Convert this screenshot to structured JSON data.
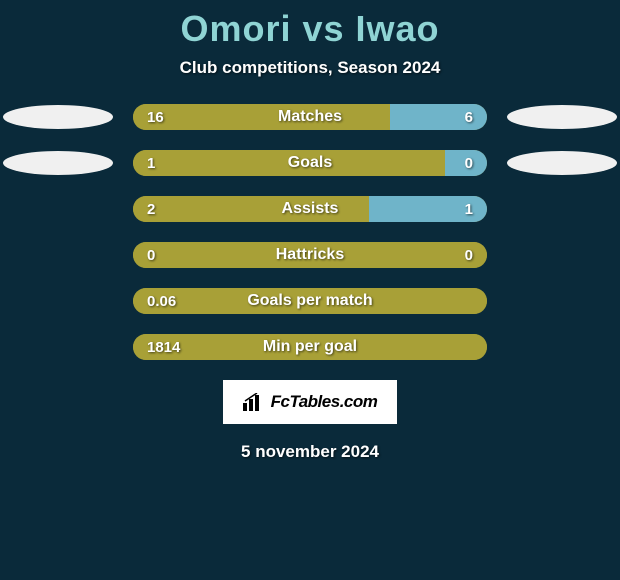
{
  "background_color": "#0a2a3a",
  "title": {
    "text": "Omori vs Iwao",
    "color": "#8fd4d4",
    "fontsize": 36
  },
  "subtitle": {
    "text": "Club competitions, Season 2024",
    "color": "#ffffff",
    "fontsize": 17
  },
  "left_color": "#a8a037",
  "right_color": "#6fb4c9",
  "neutral_color": "#a8a037",
  "bar_bg": "#a8a037",
  "oval_left_color": "#f0f0f0",
  "oval_right_color": "#f0f0f0",
  "stats": [
    {
      "label": "Matches",
      "left_val": "16",
      "right_val": "6",
      "left_num": 16,
      "right_num": 6,
      "show_ovals": true
    },
    {
      "label": "Goals",
      "left_val": "1",
      "right_val": "0",
      "left_num": 1,
      "right_num": 0,
      "show_ovals": true
    },
    {
      "label": "Assists",
      "left_val": "2",
      "right_val": "1",
      "left_num": 2,
      "right_num": 1,
      "show_ovals": false
    },
    {
      "label": "Hattricks",
      "left_val": "0",
      "right_val": "0",
      "left_num": 0,
      "right_num": 0,
      "show_ovals": false
    },
    {
      "label": "Goals per match",
      "left_val": "0.06",
      "right_val": "",
      "left_num": 0.06,
      "right_num": 0,
      "show_ovals": false
    },
    {
      "label": "Min per goal",
      "left_val": "1814",
      "right_val": "",
      "left_num": 1814,
      "right_num": 0,
      "show_ovals": false
    }
  ],
  "badge": {
    "text": "FcTables.com",
    "bg": "#ffffff",
    "text_color": "#000000",
    "fontsize": 17
  },
  "date": {
    "text": "5 november 2024",
    "color": "#ffffff",
    "fontsize": 17
  }
}
